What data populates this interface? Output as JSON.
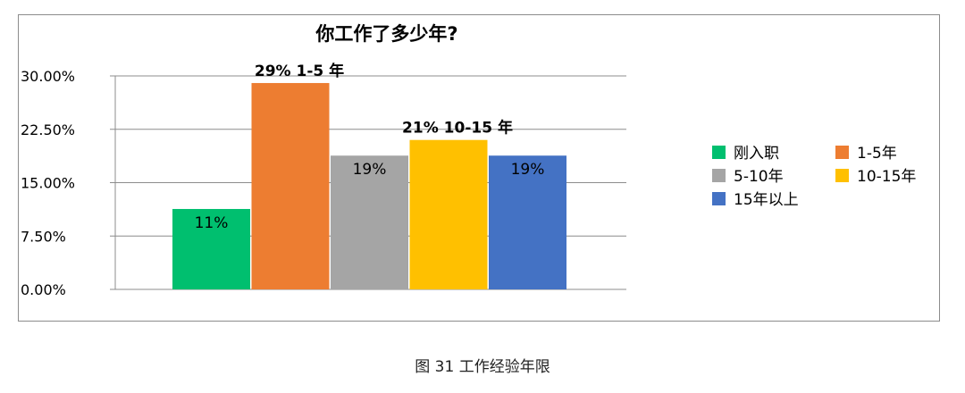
{
  "chart_data": {
    "type": "bar",
    "title": "你工作了多少年?",
    "xlabel": "",
    "ylabel": "",
    "ylim": [
      0,
      30
    ],
    "yticks": [
      "0.00%",
      "7.50%",
      "15.00%",
      "22.50%",
      "30.00%"
    ],
    "ytick_values": [
      0,
      7.5,
      15,
      22.5,
      30
    ],
    "grid": true,
    "legend_position": "right",
    "categories": [
      "刚入职",
      "1-5年",
      "5-10年",
      "10-15年",
      "15年以上"
    ],
    "values": [
      11.3,
      29,
      18.8,
      21,
      18.8
    ],
    "colors": [
      "#00bf6f",
      "#ed7d31",
      "#a5a5a5",
      "#ffc000",
      "#4472c4"
    ],
    "data_labels": [
      "11%",
      "29% 1-5 年",
      "19%",
      "21% 10-15 年",
      "19%"
    ],
    "data_label_bold": [
      false,
      true,
      false,
      true,
      false
    ]
  },
  "caption": "图 31 工作经验年限"
}
